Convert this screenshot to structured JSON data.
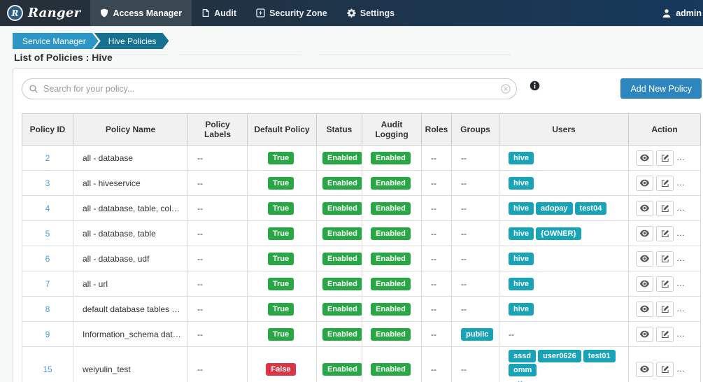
{
  "colors": {
    "accent": "#2d87be",
    "success": "#28a745",
    "danger": "#dc3545",
    "info": "#18a3b8",
    "trash": "#e4606d",
    "link": "#459fd4",
    "crumb1": "#2e96c7",
    "crumb2": "#15718f"
  },
  "navbar": {
    "brand": "Ranger",
    "items": [
      {
        "label": "Access Manager",
        "icon": "shield-icon",
        "active": true
      },
      {
        "label": "Audit",
        "icon": "document-icon",
        "active": false
      },
      {
        "label": "Security Zone",
        "icon": "bolt-icon",
        "active": false
      },
      {
        "label": "Settings",
        "icon": "gear-icon",
        "active": false
      }
    ],
    "user_label": "admin"
  },
  "breadcrumb": [
    "Service Manager",
    "Hive Policies"
  ],
  "page_title": "List of Policies : Hive",
  "search": {
    "placeholder": "Search for your policy..."
  },
  "add_button_label": "Add New Policy",
  "table": {
    "columns": [
      "Policy ID",
      "Policy Name",
      "Policy Labels",
      "Default Policy",
      "Status",
      "Audit Logging",
      "Roles",
      "Groups",
      "Users",
      "Action"
    ],
    "more_label": "+ More..",
    "rows": [
      {
        "id": "2",
        "name": "all - database",
        "labels": "--",
        "default_policy": "True",
        "status": "Enabled",
        "audit": "Enabled",
        "roles": "--",
        "groups": "--",
        "users": [
          "hive"
        ],
        "more": false
      },
      {
        "id": "3",
        "name": "all - hiveservice",
        "labels": "--",
        "default_policy": "True",
        "status": "Enabled",
        "audit": "Enabled",
        "roles": "--",
        "groups": "--",
        "users": [
          "hive"
        ],
        "more": false
      },
      {
        "id": "4",
        "name": "all - database, table, column",
        "labels": "--",
        "default_policy": "True",
        "status": "Enabled",
        "audit": "Enabled",
        "roles": "--",
        "groups": "--",
        "users": [
          "hive",
          "adopay",
          "test04"
        ],
        "more": false
      },
      {
        "id": "5",
        "name": "all - database, table",
        "labels": "--",
        "default_policy": "True",
        "status": "Enabled",
        "audit": "Enabled",
        "roles": "--",
        "groups": "--",
        "users": [
          "hive",
          "{OWNER}"
        ],
        "more": false
      },
      {
        "id": "6",
        "name": "all - database, udf",
        "labels": "--",
        "default_policy": "True",
        "status": "Enabled",
        "audit": "Enabled",
        "roles": "--",
        "groups": "--",
        "users": [
          "hive"
        ],
        "more": false
      },
      {
        "id": "7",
        "name": "all - url",
        "labels": "--",
        "default_policy": "True",
        "status": "Enabled",
        "audit": "Enabled",
        "roles": "--",
        "groups": "--",
        "users": [
          "hive"
        ],
        "more": false
      },
      {
        "id": "8",
        "name": "default database tables columns",
        "labels": "--",
        "default_policy": "True",
        "status": "Enabled",
        "audit": "Enabled",
        "roles": "--",
        "groups": "--",
        "users": [
          "hive"
        ],
        "more": false
      },
      {
        "id": "9",
        "name": "Information_schema database tables...",
        "labels": "--",
        "default_policy": "True",
        "status": "Enabled",
        "audit": "Enabled",
        "roles": "--",
        "groups": [
          "public"
        ],
        "users": "--",
        "more": false
      },
      {
        "id": "15",
        "name": "weiyulin_test",
        "labels": "--",
        "default_policy": "False",
        "status": "Enabled",
        "audit": "Enabled",
        "roles": "--",
        "groups": "--",
        "users": [
          "sssd",
          "user0626",
          "test01",
          "omm"
        ],
        "more": true
      }
    ]
  }
}
